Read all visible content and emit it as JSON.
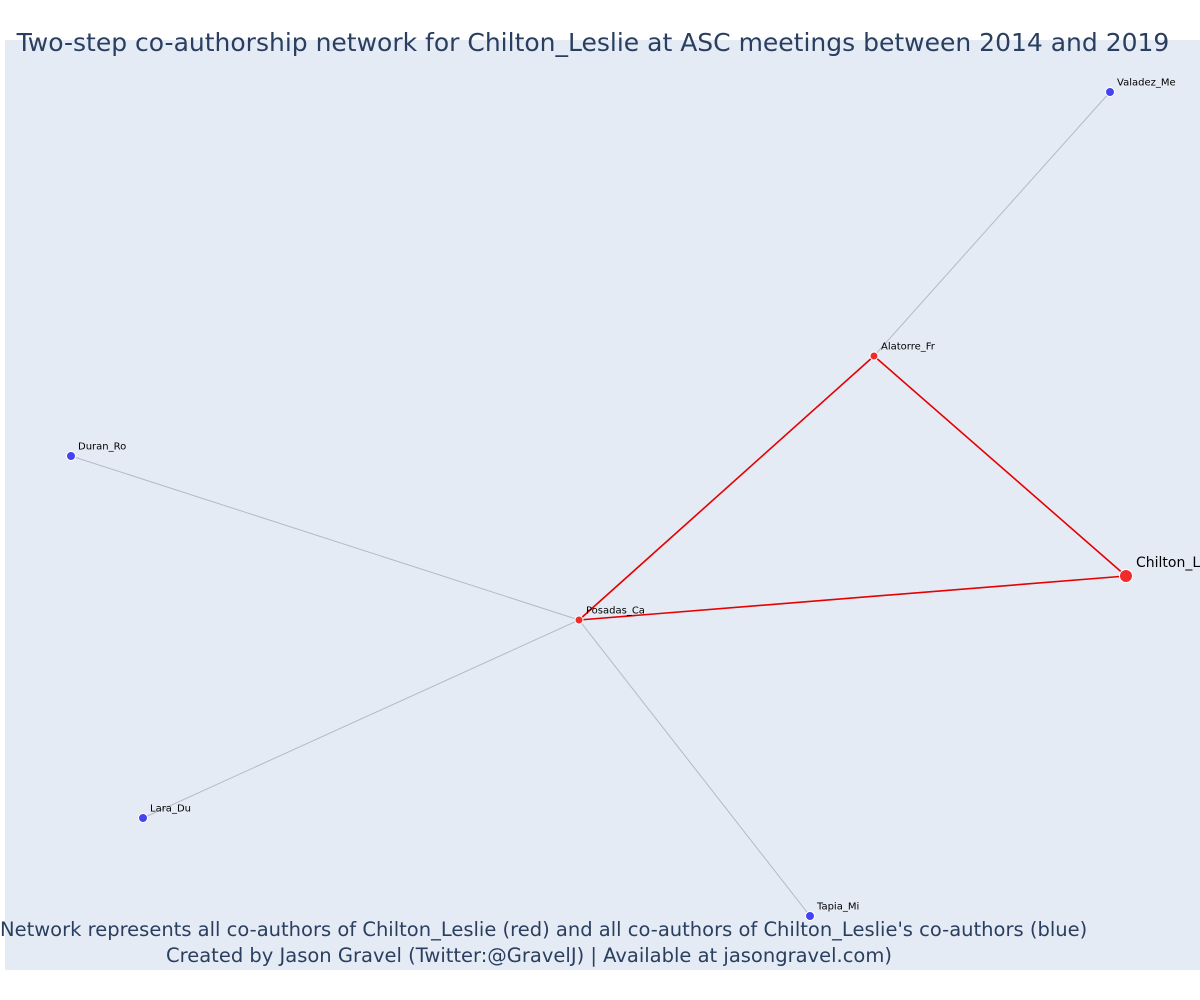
{
  "title": "Two-step co-authorship network for Chilton_Leslie at ASC meetings between 2014 and 2019",
  "caption_line1": "Network represents all co-authors of Chilton_Leslie (red) and all co-authors of Chilton_Leslie's co-authors (blue)",
  "caption_line2": "Created by Jason Gravel (Twitter:@GravelJ) | Available at jasongravel.com)",
  "colors": {
    "background": "#e5ebf5",
    "coauthor": "#ef2b2b",
    "second_step": "#4343f0",
    "direct_edge": "#e60000",
    "indirect_edge": "#b4b9c8",
    "title": "#2a3f5f"
  },
  "nodes": [
    {
      "id": "Chilton_Leslie",
      "label": "Chilton_Leslie",
      "group": "focal"
    },
    {
      "id": "Alatorre_Fr",
      "label": "Alatorre_Fr",
      "group": "coauthor"
    },
    {
      "id": "Posadas_Ca",
      "label": "Posadas_Ca",
      "group": "coauthor"
    },
    {
      "id": "Valadez_Me",
      "label": "Valadez_Me",
      "group": "second_step"
    },
    {
      "id": "Duran_Ro",
      "label": "Duran_Ro",
      "group": "second_step"
    },
    {
      "id": "Lara_Du",
      "label": "Lara_Du",
      "group": "second_step"
    },
    {
      "id": "Tapia_Mi",
      "label": "Tapia_Mi",
      "group": "second_step"
    }
  ],
  "edges": [
    {
      "source": "Chilton_Leslie",
      "target": "Alatorre_Fr",
      "type": "direct"
    },
    {
      "source": "Chilton_Leslie",
      "target": "Posadas_Ca",
      "type": "direct"
    },
    {
      "source": "Alatorre_Fr",
      "target": "Posadas_Ca",
      "type": "direct"
    },
    {
      "source": "Alatorre_Fr",
      "target": "Valadez_Me",
      "type": "indirect"
    },
    {
      "source": "Posadas_Ca",
      "target": "Duran_Ro",
      "type": "indirect"
    },
    {
      "source": "Posadas_Ca",
      "target": "Lara_Du",
      "type": "indirect"
    },
    {
      "source": "Posadas_Ca",
      "target": "Tapia_Mi",
      "type": "indirect"
    }
  ]
}
